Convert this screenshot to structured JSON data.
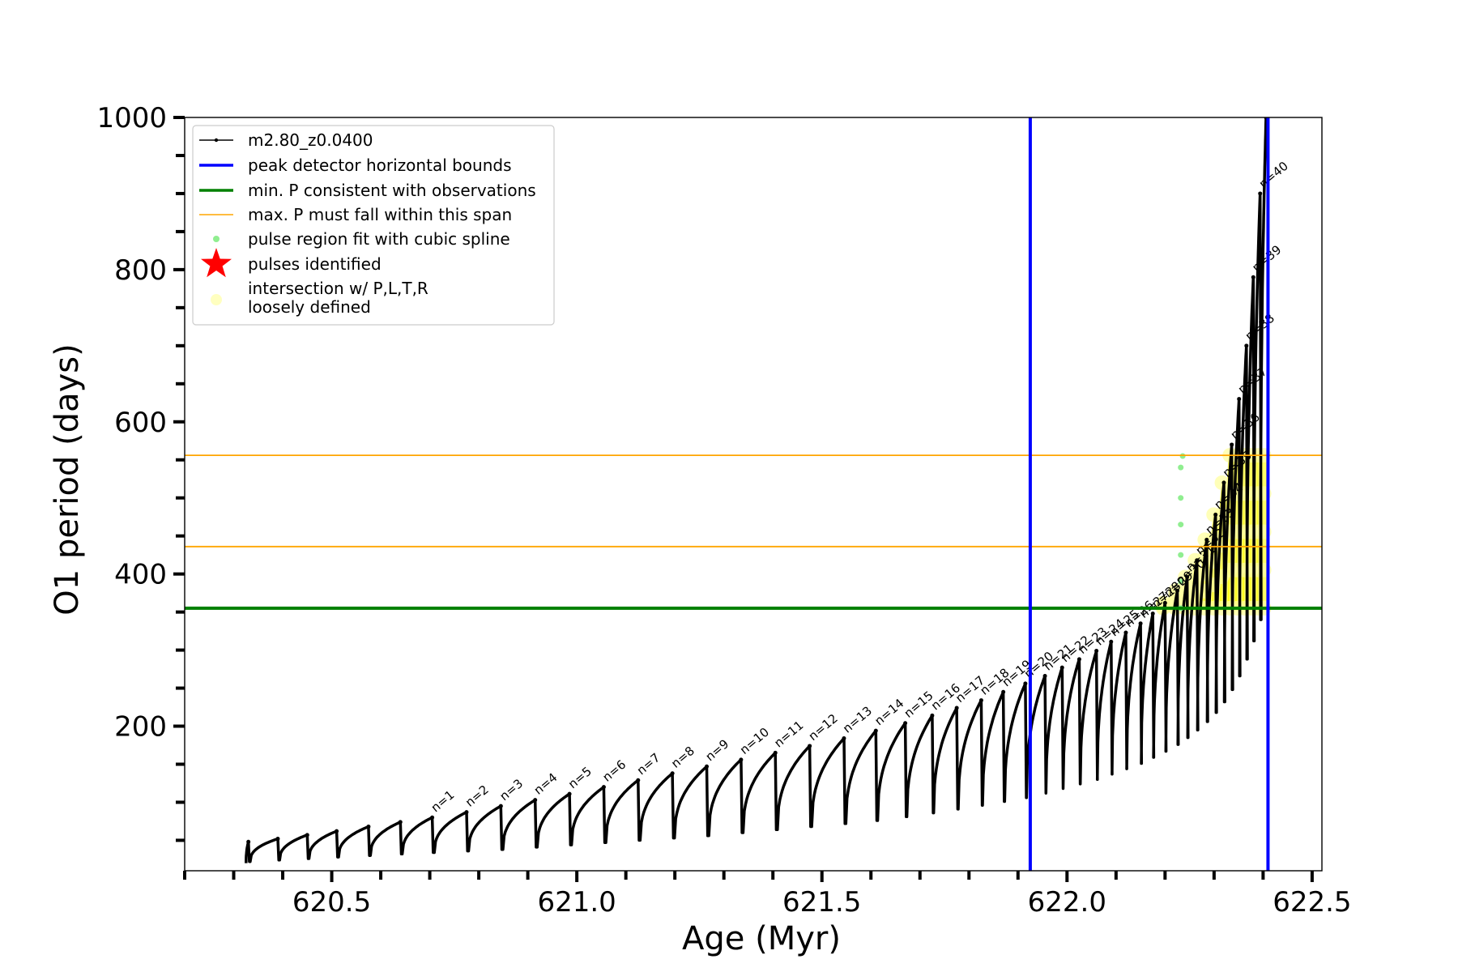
{
  "chart_data": {
    "type": "line",
    "xlabel": "Age (Myr)",
    "ylabel": "O1 period (days)",
    "xlim": [
      620.2,
      622.52
    ],
    "ylim": [
      10,
      1000
    ],
    "x_tick_labels": [
      "620.5",
      "621.0",
      "621.5",
      "622.0",
      "622.5"
    ],
    "y_tick_labels": [
      "200",
      "400",
      "600",
      "800",
      "1000"
    ],
    "grid": false,
    "legend_position": "top-left",
    "legend": [
      {
        "label": "m2.80_z0.0400",
        "color": "#000000",
        "kind": "line-marker"
      },
      {
        "label": "peak detector horizontal bounds",
        "color": "#0000ff",
        "kind": "line"
      },
      {
        "label": "min. P consistent with observations",
        "color": "#008000",
        "kind": "line"
      },
      {
        "label": "max. P must fall within this span",
        "color": "#ffa500",
        "kind": "line"
      },
      {
        "label": "pulse region fit with cubic spline",
        "color": "#90ee90",
        "kind": "dot"
      },
      {
        "label": "pulses identified",
        "color": "#ff0000",
        "kind": "star"
      },
      {
        "label": "intersection w/ P,L,T,R\nloosely defined",
        "color": "#ffffc0",
        "kind": "circle"
      }
    ],
    "vertical_lines": [
      {
        "name": "peak detector horizontal bounds",
        "x": 621.925,
        "color": "#0000ff"
      },
      {
        "name": "peak detector horizontal bounds",
        "x": 622.41,
        "color": "#0000ff"
      }
    ],
    "horizontal_lines": [
      {
        "name": "min. P consistent with observations",
        "y": 355,
        "color": "#008000"
      },
      {
        "name": "max. P must fall within this span",
        "y": 436,
        "color": "#ffa500"
      },
      {
        "name": "max. P must fall within this span",
        "y": 556,
        "color": "#ffa500"
      }
    ],
    "pulses": [
      {
        "label": "",
        "x": 620.33,
        "min": 20,
        "max": 48
      },
      {
        "label": "",
        "x": 620.39,
        "min": 22,
        "max": 52
      },
      {
        "label": "",
        "x": 620.45,
        "min": 24,
        "max": 57
      },
      {
        "label": "",
        "x": 620.51,
        "min": 26,
        "max": 62
      },
      {
        "label": "",
        "x": 620.575,
        "min": 28,
        "max": 68
      },
      {
        "label": "",
        "x": 620.64,
        "min": 30,
        "max": 74
      },
      {
        "label": "n=1",
        "x": 620.705,
        "min": 32,
        "max": 80
      },
      {
        "label": "n=2",
        "x": 620.775,
        "min": 34,
        "max": 87
      },
      {
        "label": "n=3",
        "x": 620.845,
        "min": 36,
        "max": 95
      },
      {
        "label": "n=4",
        "x": 620.915,
        "min": 38,
        "max": 103
      },
      {
        "label": "n=5",
        "x": 620.985,
        "min": 41,
        "max": 111
      },
      {
        "label": "n=6",
        "x": 621.055,
        "min": 44,
        "max": 120
      },
      {
        "label": "n=7",
        "x": 621.125,
        "min": 47,
        "max": 129
      },
      {
        "label": "n=8",
        "x": 621.195,
        "min": 50,
        "max": 138
      },
      {
        "label": "n=9",
        "x": 621.265,
        "min": 53,
        "max": 147
      },
      {
        "label": "n=10",
        "x": 621.335,
        "min": 56,
        "max": 156
      },
      {
        "label": "n=11",
        "x": 621.405,
        "min": 60,
        "max": 165
      },
      {
        "label": "n=12",
        "x": 621.475,
        "min": 64,
        "max": 174
      },
      {
        "label": "n=13",
        "x": 621.545,
        "min": 68,
        "max": 184
      },
      {
        "label": "n=14",
        "x": 621.61,
        "min": 72,
        "max": 194
      },
      {
        "label": "n=15",
        "x": 621.67,
        "min": 76,
        "max": 204
      },
      {
        "label": "n=16",
        "x": 621.725,
        "min": 81,
        "max": 214
      },
      {
        "label": "n=17",
        "x": 621.775,
        "min": 86,
        "max": 224
      },
      {
        "label": "n=18",
        "x": 621.825,
        "min": 91,
        "max": 234
      },
      {
        "label": "n=19",
        "x": 621.87,
        "min": 96,
        "max": 245
      },
      {
        "label": "n=20",
        "x": 621.915,
        "min": 101,
        "max": 256
      },
      {
        "label": "n=21",
        "x": 621.955,
        "min": 106,
        "max": 266
      },
      {
        "label": "n=22",
        "x": 621.99,
        "min": 112,
        "max": 277
      },
      {
        "label": "n=23",
        "x": 622.025,
        "min": 118,
        "max": 288
      },
      {
        "label": "n=24",
        "x": 622.06,
        "min": 124,
        "max": 299
      },
      {
        "label": "n=25",
        "x": 622.09,
        "min": 130,
        "max": 311
      },
      {
        "label": "n=26",
        "x": 622.12,
        "min": 137,
        "max": 323
      },
      {
        "label": "n=27",
        "x": 622.15,
        "min": 144,
        "max": 335
      },
      {
        "label": "n=28",
        "x": 622.175,
        "min": 151,
        "max": 348
      },
      {
        "label": "n=29",
        "x": 622.2,
        "min": 159,
        "max": 362
      },
      {
        "label": "n=30",
        "x": 622.225,
        "min": 167,
        "max": 378
      },
      {
        "label": "n=31",
        "x": 622.245,
        "min": 176,
        "max": 396
      },
      {
        "label": "n=32",
        "x": 622.265,
        "min": 185,
        "max": 418
      },
      {
        "label": "n=33",
        "x": 622.285,
        "min": 195,
        "max": 445
      },
      {
        "label": "n=34",
        "x": 622.303,
        "min": 206,
        "max": 478
      },
      {
        "label": "n=35",
        "x": 622.32,
        "min": 218,
        "max": 520
      },
      {
        "label": "n=36",
        "x": 622.336,
        "min": 232,
        "max": 570
      },
      {
        "label": "n=37",
        "x": 622.351,
        "min": 248,
        "max": 630
      },
      {
        "label": "n=38",
        "x": 622.366,
        "min": 266,
        "max": 700
      },
      {
        "label": "n=39",
        "x": 622.38,
        "min": 288,
        "max": 790
      },
      {
        "label": "n=40",
        "x": 622.394,
        "min": 312,
        "max": 900
      },
      {
        "label": "",
        "x": 622.406,
        "min": 340,
        "max": 1000
      }
    ]
  }
}
